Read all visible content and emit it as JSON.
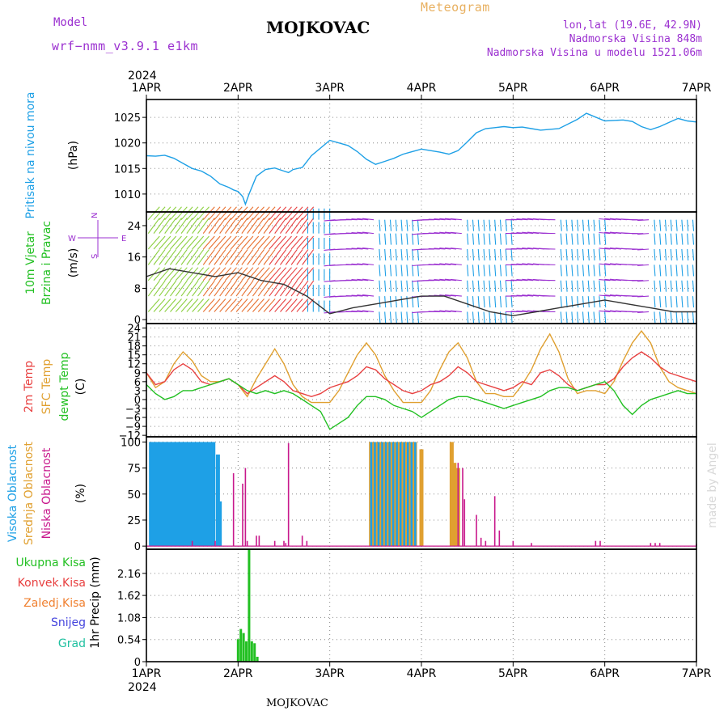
{
  "header": {
    "model_label": "Model",
    "model_name": "wrf−nmm_v3.9.1  e1km",
    "location": "MOJKOVAC",
    "product": "Meteogram",
    "coords": "lon,lat (19.6E, 42.9N)",
    "altitude": "Nadmorska Visina 848m",
    "model_altitude": "Nadmorska Visina u modelu 1521.06m",
    "footer_location": "MOJKOVAC",
    "credit": "made by Angel"
  },
  "time_axis": {
    "year": "2024",
    "labels": [
      "1APR",
      "2APR",
      "3APR",
      "4APR",
      "5APR",
      "6APR",
      "7APR"
    ],
    "range_days": [
      0,
      6
    ]
  },
  "colors": {
    "pressure": "#1ea0e6",
    "temp2m": "#e84040",
    "sfc_temp": "#e0a030",
    "dewpoint": "#22c022",
    "high_cloud": "#1ea0e6",
    "mid_cloud": "#e0a030",
    "low_cloud": "#c8188c",
    "precip": "#22c022",
    "wind_low": "#8cd040",
    "wind_high": "#e84040",
    "wind_mid": "#1ea0e6",
    "wind_calm": "#9b30d0"
  },
  "chart_data": [
    {
      "id": "pressure",
      "type": "line",
      "ylabel_main": "Pritisak na nivou mora",
      "ylabel_unit": "(hPa)",
      "yticks": [
        "1010",
        "1015",
        "1020",
        "1025"
      ],
      "ylim": [
        1006.5,
        1028.5
      ],
      "grid": true,
      "x": [
        0,
        0.1,
        0.2,
        0.3,
        0.4,
        0.5,
        0.6,
        0.7,
        0.8,
        0.9,
        0.95,
        1.0,
        1.05,
        1.08,
        1.12,
        1.2,
        1.3,
        1.4,
        1.5,
        1.55,
        1.6,
        1.7,
        1.8,
        2.0,
        2.2,
        2.3,
        2.4,
        2.5,
        2.6,
        2.7,
        2.8,
        2.9,
        3.0,
        3.1,
        3.2,
        3.3,
        3.4,
        3.5,
        3.6,
        3.7,
        3.8,
        3.9,
        4.0,
        4.1,
        4.2,
        4.3,
        4.5,
        4.7,
        4.8,
        5.0,
        5.2,
        5.3,
        5.4,
        5.5,
        5.6,
        5.7,
        5.8,
        5.9,
        6.0
      ],
      "series": [
        {
          "values": [
            1017.5,
            1017.4,
            1017.6,
            1017,
            1016,
            1015,
            1014.5,
            1013.5,
            1012,
            1011.3,
            1010.8,
            1010.5,
            1009.5,
            1008,
            1010,
            1013.5,
            1014.8,
            1015.1,
            1014.5,
            1014.2,
            1014.8,
            1015.2,
            1017.5,
            1020.5,
            1019.5,
            1018.3,
            1016.8,
            1015.8,
            1016.4,
            1017,
            1017.8,
            1018.3,
            1018.8,
            1018.5,
            1018.2,
            1017.8,
            1018.5,
            1020.2,
            1022,
            1022.8,
            1023,
            1023.2,
            1023,
            1023.1,
            1022.8,
            1022.5,
            1022.8,
            1024.6,
            1025.8,
            1024.3,
            1024.5,
            1024.2,
            1023.2,
            1022.6,
            1023.2,
            1024,
            1024.8,
            1024.3,
            1024.1
          ]
        }
      ]
    },
    {
      "id": "wind",
      "type": "vector",
      "ylabel_main": "10m Vjetar",
      "ylabel_sub": "Brzina i Pravac",
      "ylabel_unit": "(m/s)",
      "compass": [
        "N",
        "W",
        "E",
        "S"
      ],
      "yticks": [
        "0",
        "8",
        "16",
        "24"
      ],
      "ylim": [
        -1,
        27.5
      ],
      "grid": true,
      "x": [
        0,
        0.25,
        0.5,
        0.75,
        1.0,
        1.25,
        1.5,
        1.75,
        2.0,
        2.25,
        2.5,
        2.75,
        3.0,
        3.25,
        3.5,
        3.75,
        4.0,
        4.25,
        4.5,
        4.75,
        5.0,
        5.25,
        5.5,
        5.75,
        6.0
      ],
      "speed": [
        11,
        13,
        12,
        11,
        12,
        10,
        9,
        6,
        1.5,
        3,
        4,
        5,
        6,
        6,
        4,
        2,
        1,
        2,
        3,
        4,
        5,
        4,
        3,
        2,
        2
      ]
    },
    {
      "id": "temperature",
      "type": "line",
      "ylabel_main": "2m Temp",
      "ylabel_sub": "SFC Temp",
      "ylabel_sub2": "dewpt Temp",
      "ylabel_unit": "(C)",
      "yticks": [
        "−12",
        "−9",
        "−6",
        "−3",
        "0",
        "3",
        "6",
        "9",
        "12",
        "15",
        "18",
        "21",
        "24"
      ],
      "ylim": [
        -12.5,
        25.5
      ],
      "grid": true,
      "x": [
        0,
        0.1,
        0.2,
        0.3,
        0.4,
        0.5,
        0.6,
        0.7,
        0.8,
        0.9,
        1.0,
        1.1,
        1.2,
        1.3,
        1.4,
        1.5,
        1.6,
        1.7,
        1.8,
        1.9,
        2.0,
        2.1,
        2.2,
        2.3,
        2.4,
        2.5,
        2.6,
        2.7,
        2.8,
        2.9,
        3.0,
        3.1,
        3.2,
        3.3,
        3.4,
        3.5,
        3.6,
        3.7,
        3.8,
        3.9,
        4.0,
        4.1,
        4.2,
        4.3,
        4.4,
        4.5,
        4.6,
        4.7,
        4.8,
        4.9,
        5.0,
        5.1,
        5.2,
        5.3,
        5.4,
        5.5,
        5.6,
        5.7,
        5.8,
        5.9,
        6.0
      ],
      "series": [
        {
          "values": [
            9,
            5,
            6,
            10,
            12,
            10,
            6,
            5,
            6,
            7,
            5,
            2,
            4,
            6,
            8,
            6,
            3,
            2,
            1,
            2,
            4,
            5,
            6,
            8,
            11,
            10,
            7,
            5,
            3,
            2,
            3,
            5,
            6,
            8,
            11,
            9,
            6,
            5,
            4,
            3,
            4,
            6,
            5,
            9,
            10,
            8,
            5,
            3,
            4,
            5,
            5,
            7,
            11,
            14,
            16,
            14,
            11,
            9,
            8,
            7,
            6
          ]
        },
        {
          "values": [
            9,
            4,
            6,
            12,
            16,
            13,
            8,
            6,
            6,
            7,
            5,
            1,
            7,
            12,
            17,
            12,
            5,
            1,
            -1,
            -1,
            -1,
            3,
            9,
            15,
            19,
            15,
            8,
            3,
            -1,
            -1,
            -1,
            3,
            10,
            16,
            19,
            14,
            6,
            2,
            2,
            1,
            1,
            5,
            10,
            17,
            22,
            16,
            7,
            2,
            3,
            3,
            2,
            6,
            13,
            19,
            23,
            19,
            11,
            6,
            4,
            3,
            2
          ]
        },
        {
          "values": [
            5,
            2,
            0,
            1,
            3,
            3,
            4,
            5,
            6,
            7,
            5,
            3,
            2,
            3,
            2,
            3,
            2,
            0,
            -2,
            -4,
            -10,
            -8,
            -6,
            -2,
            1,
            1,
            0,
            -2,
            -3,
            -4,
            -6,
            -4,
            -2,
            0,
            1,
            1,
            0,
            -1,
            -2,
            -3,
            -2,
            -1,
            0,
            1,
            3,
            4,
            4,
            3,
            4,
            5,
            6,
            3,
            -2,
            -5,
            -2,
            0,
            1,
            2,
            3,
            2,
            2
          ]
        }
      ]
    },
    {
      "id": "cloud",
      "type": "bar",
      "ylabel_main": "Visoka Oblacnost",
      "ylabel_sub": "Srednja Oblacnost",
      "ylabel_sub2": "Niska Oblacnost",
      "ylabel_unit": "(%)",
      "yticks": [
        "0",
        "25",
        "50",
        "75",
        "100"
      ],
      "ylim": [
        -3,
        105
      ],
      "grid": true,
      "high_x": [
        0.05,
        0.09,
        0.13,
        0.17,
        0.21,
        0.25,
        0.29,
        0.33,
        0.37,
        0.41,
        0.45,
        0.49,
        0.53,
        0.57,
        0.61,
        0.65,
        0.69,
        0.73,
        0.78,
        0.8
      ],
      "high_values": [
        100,
        100,
        100,
        100,
        100,
        100,
        100,
        100,
        100,
        100,
        100,
        100,
        100,
        100,
        100,
        100,
        100,
        100,
        88,
        43
      ],
      "mid_x": [
        2.45,
        2.49,
        2.53,
        2.57,
        2.61,
        2.65,
        2.69,
        2.73,
        2.77,
        2.81,
        2.85,
        2.89,
        2.93,
        3.0,
        3.33,
        3.36,
        3.4
      ],
      "mid_values": [
        100,
        100,
        100,
        100,
        100,
        100,
        100,
        100,
        100,
        100,
        100,
        100,
        100,
        93,
        100,
        80,
        75
      ],
      "high2_x": [
        2.45,
        2.49,
        2.53,
        2.57,
        2.61,
        2.65,
        2.69,
        2.73,
        2.77,
        2.81,
        2.85,
        2.89,
        2.93
      ],
      "high2_values": [
        100,
        100,
        100,
        100,
        100,
        100,
        100,
        100,
        100,
        100,
        100,
        100,
        100
      ],
      "low_x": [
        0.5,
        0.75,
        0.95,
        1.05,
        1.08,
        1.1,
        1.2,
        1.23,
        1.4,
        1.5,
        1.52,
        1.55,
        1.7,
        1.75,
        3.4,
        3.45,
        3.47,
        3.6,
        3.65,
        3.7,
        3.8,
        3.85,
        4.0,
        4.2,
        4.9,
        4.95,
        5.5,
        5.55,
        5.6,
        6.0
      ],
      "low_values": [
        5,
        5,
        70,
        60,
        75,
        5,
        10,
        10,
        5,
        5,
        3,
        99,
        10,
        5,
        80,
        75,
        45,
        30,
        8,
        5,
        48,
        15,
        5,
        3,
        5,
        5,
        3,
        3,
        3,
        2
      ]
    },
    {
      "id": "precip",
      "type": "bar",
      "ylabel_main": "1hr Precip",
      "ylabel_unit": "(mm)",
      "legend": [
        "Ukupna  Kisa",
        "Konvek.Kisa",
        "Zaledj.Kisa",
        "Snijeg",
        "Grad"
      ],
      "yticks": [
        "0",
        "0.54",
        "1.08",
        "1.62",
        "2.16"
      ],
      "ylim": [
        0,
        2.75
      ],
      "grid": true,
      "x": [
        1.0,
        1.03,
        1.06,
        1.09,
        1.12,
        1.15,
        1.18,
        1.21
      ],
      "values": [
        0.55,
        0.8,
        0.7,
        0.5,
        2.75,
        0.5,
        0.45,
        0.12
      ]
    }
  ]
}
